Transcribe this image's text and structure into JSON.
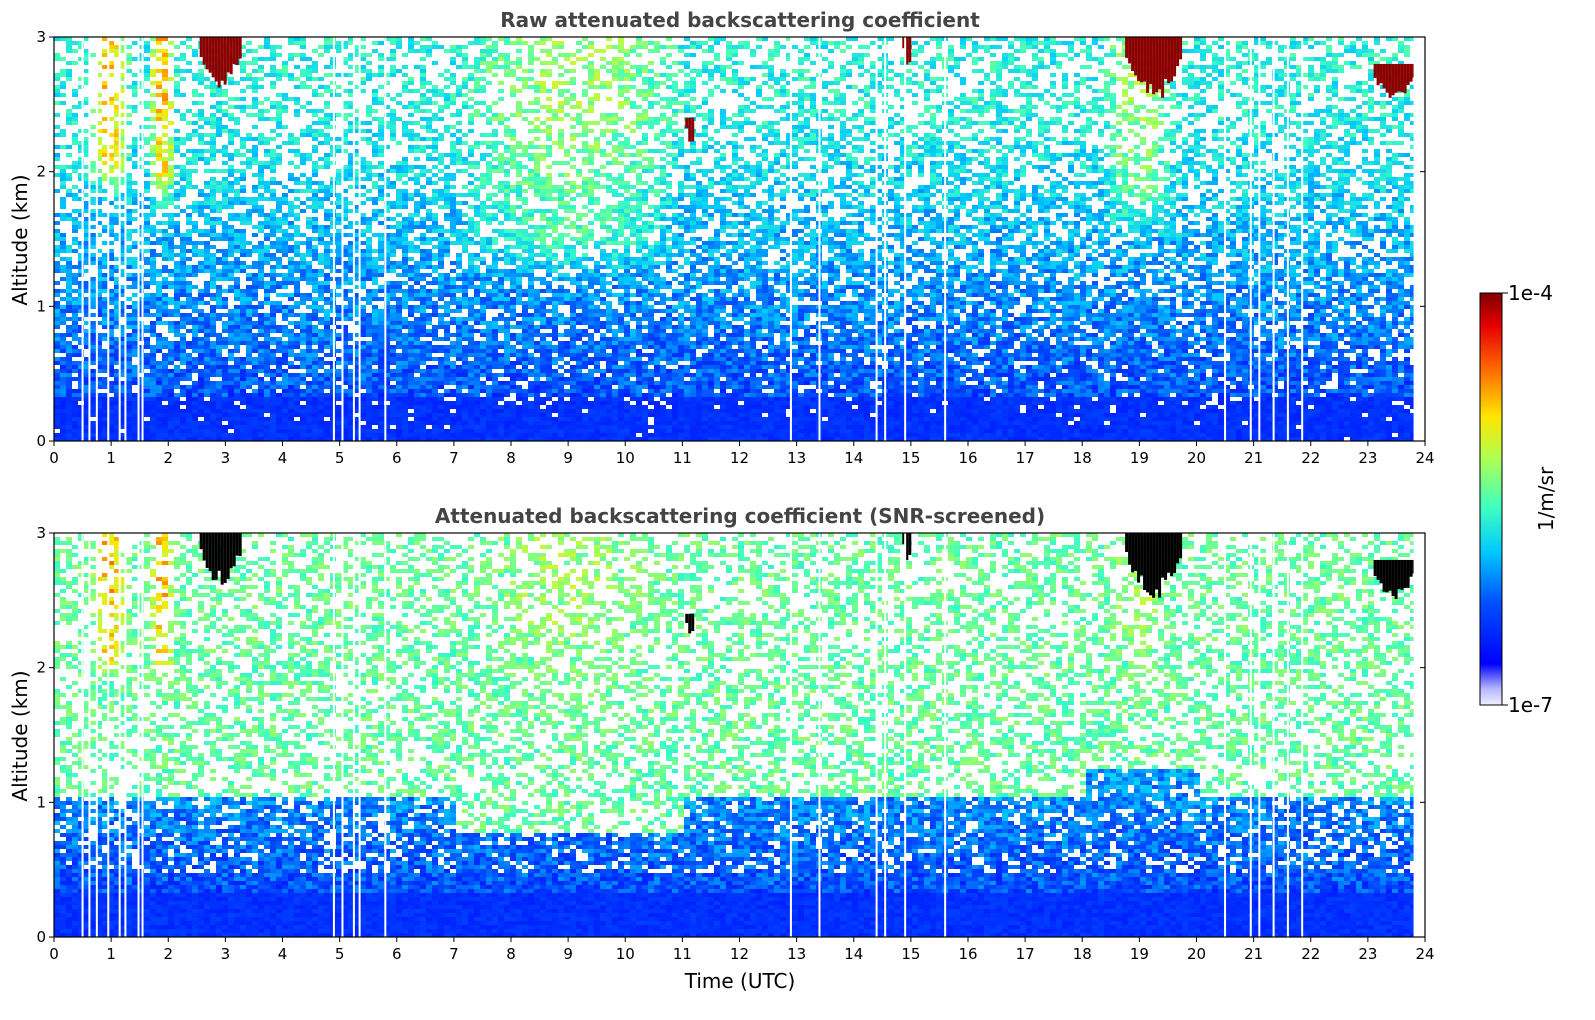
{
  "chart_data": [
    {
      "type": "heatmap",
      "title": "Raw attenuated backscattering coefficient",
      "xlabel": "",
      "ylabel": "Altitude (km)",
      "xlim": [
        0,
        24
      ],
      "ylim": [
        0,
        3
      ],
      "x_ticks": [
        "0",
        "1",
        "2",
        "3",
        "4",
        "5",
        "6",
        "7",
        "8",
        "9",
        "10",
        "11",
        "12",
        "13",
        "14",
        "15",
        "16",
        "17",
        "18",
        "19",
        "20",
        "21",
        "22",
        "23",
        "24"
      ],
      "y_ticks": [
        "0",
        "1",
        "2",
        "3"
      ],
      "data_end_time": 23.8,
      "dropout_times": [
        0.5,
        0.62,
        0.75,
        0.95,
        1.15,
        1.25,
        1.48,
        1.55,
        4.9,
        5.05,
        5.25,
        5.35,
        5.8,
        12.9,
        13.4,
        14.4,
        14.55,
        14.9,
        15.6,
        20.5,
        20.95,
        21.1,
        21.35,
        21.6,
        21.85
      ],
      "features": [
        {
          "kind": "aerosol-plume",
          "t_start": 0.55,
          "t_end": 1.3,
          "z_min": 1.8,
          "z_max": 3.0
        },
        {
          "kind": "aerosol-plume",
          "t_start": 1.6,
          "t_end": 2.1,
          "z_min": 1.7,
          "z_max": 3.0
        },
        {
          "kind": "elevated-aerosol",
          "t_start": 7.0,
          "t_end": 11.0,
          "z_min": 1.2,
          "z_max": 3.0
        },
        {
          "kind": "elevated-aerosol",
          "t_start": 18.3,
          "t_end": 19.6,
          "z_min": 1.5,
          "z_max": 3.0
        },
        {
          "kind": "cloud",
          "t_start": 2.55,
          "t_end": 3.25,
          "z_min": 2.6,
          "z_max": 3.0
        },
        {
          "kind": "cloud",
          "t_start": 11.05,
          "t_end": 11.2,
          "z_min": 2.2,
          "z_max": 2.4
        },
        {
          "kind": "cloud",
          "t_start": 14.85,
          "t_end": 15.0,
          "z_min": 2.75,
          "z_max": 3.0
        },
        {
          "kind": "cloud",
          "t_start": 18.75,
          "t_end": 19.7,
          "z_min": 2.5,
          "z_max": 3.0
        },
        {
          "kind": "cloud",
          "t_start": 23.1,
          "t_end": 23.8,
          "z_min": 2.5,
          "z_max": 2.8
        }
      ]
    },
    {
      "type": "heatmap",
      "title": "Attenuated backscattering coefficient (SNR-screened)",
      "xlabel": "Time (UTC)",
      "ylabel": "Altitude (km)",
      "xlim": [
        0,
        24
      ],
      "ylim": [
        0,
        3
      ],
      "x_ticks": [
        "0",
        "1",
        "2",
        "3",
        "4",
        "5",
        "6",
        "7",
        "8",
        "9",
        "10",
        "11",
        "12",
        "13",
        "14",
        "15",
        "16",
        "17",
        "18",
        "19",
        "20",
        "21",
        "22",
        "23",
        "24"
      ],
      "y_ticks": [
        "0",
        "1",
        "2",
        "3"
      ],
      "data_end_time": 23.8,
      "dropout_times": [
        0.5,
        0.62,
        0.75,
        0.95,
        1.15,
        1.25,
        1.48,
        1.55,
        4.9,
        5.05,
        5.25,
        5.35,
        5.8,
        12.9,
        13.4,
        14.4,
        14.55,
        14.9,
        15.6,
        20.5,
        20.95,
        21.1,
        21.35,
        21.6,
        21.85
      ]
    }
  ],
  "colorbar": {
    "label": "1/m/sr",
    "min_label": "1e-7",
    "max_label": "1e-4",
    "scale": "log",
    "colormap": "jet"
  },
  "colors": {
    "background": "#ffffff",
    "title": "#444444",
    "cloud_raw": "#8b0000",
    "cloud_screened": "#000000",
    "nan_gap": "#ffffff"
  }
}
